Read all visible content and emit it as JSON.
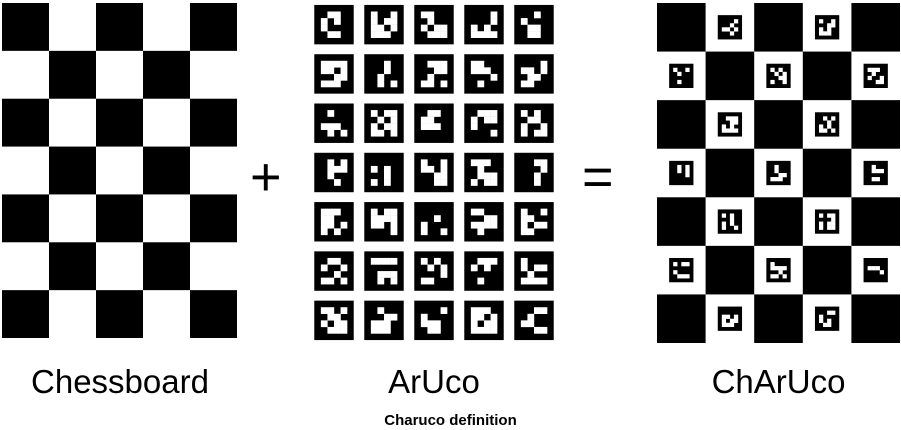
{
  "figure": {
    "operator_plus": "+",
    "operator_equals": "=",
    "labels": {
      "chessboard": "Chessboard",
      "aruco": "ArUco",
      "charuco": "ChArUco"
    },
    "caption": "Charuco definition"
  },
  "chessboard": {
    "rows": 7,
    "cols": 5,
    "top_left_black": true
  },
  "aruco": {
    "rows": 7,
    "cols": 5
  },
  "charuco": {
    "rows": 7,
    "cols": 5,
    "top_left_black": true
  },
  "colors": {
    "black": "#000000",
    "white": "#ffffff"
  }
}
